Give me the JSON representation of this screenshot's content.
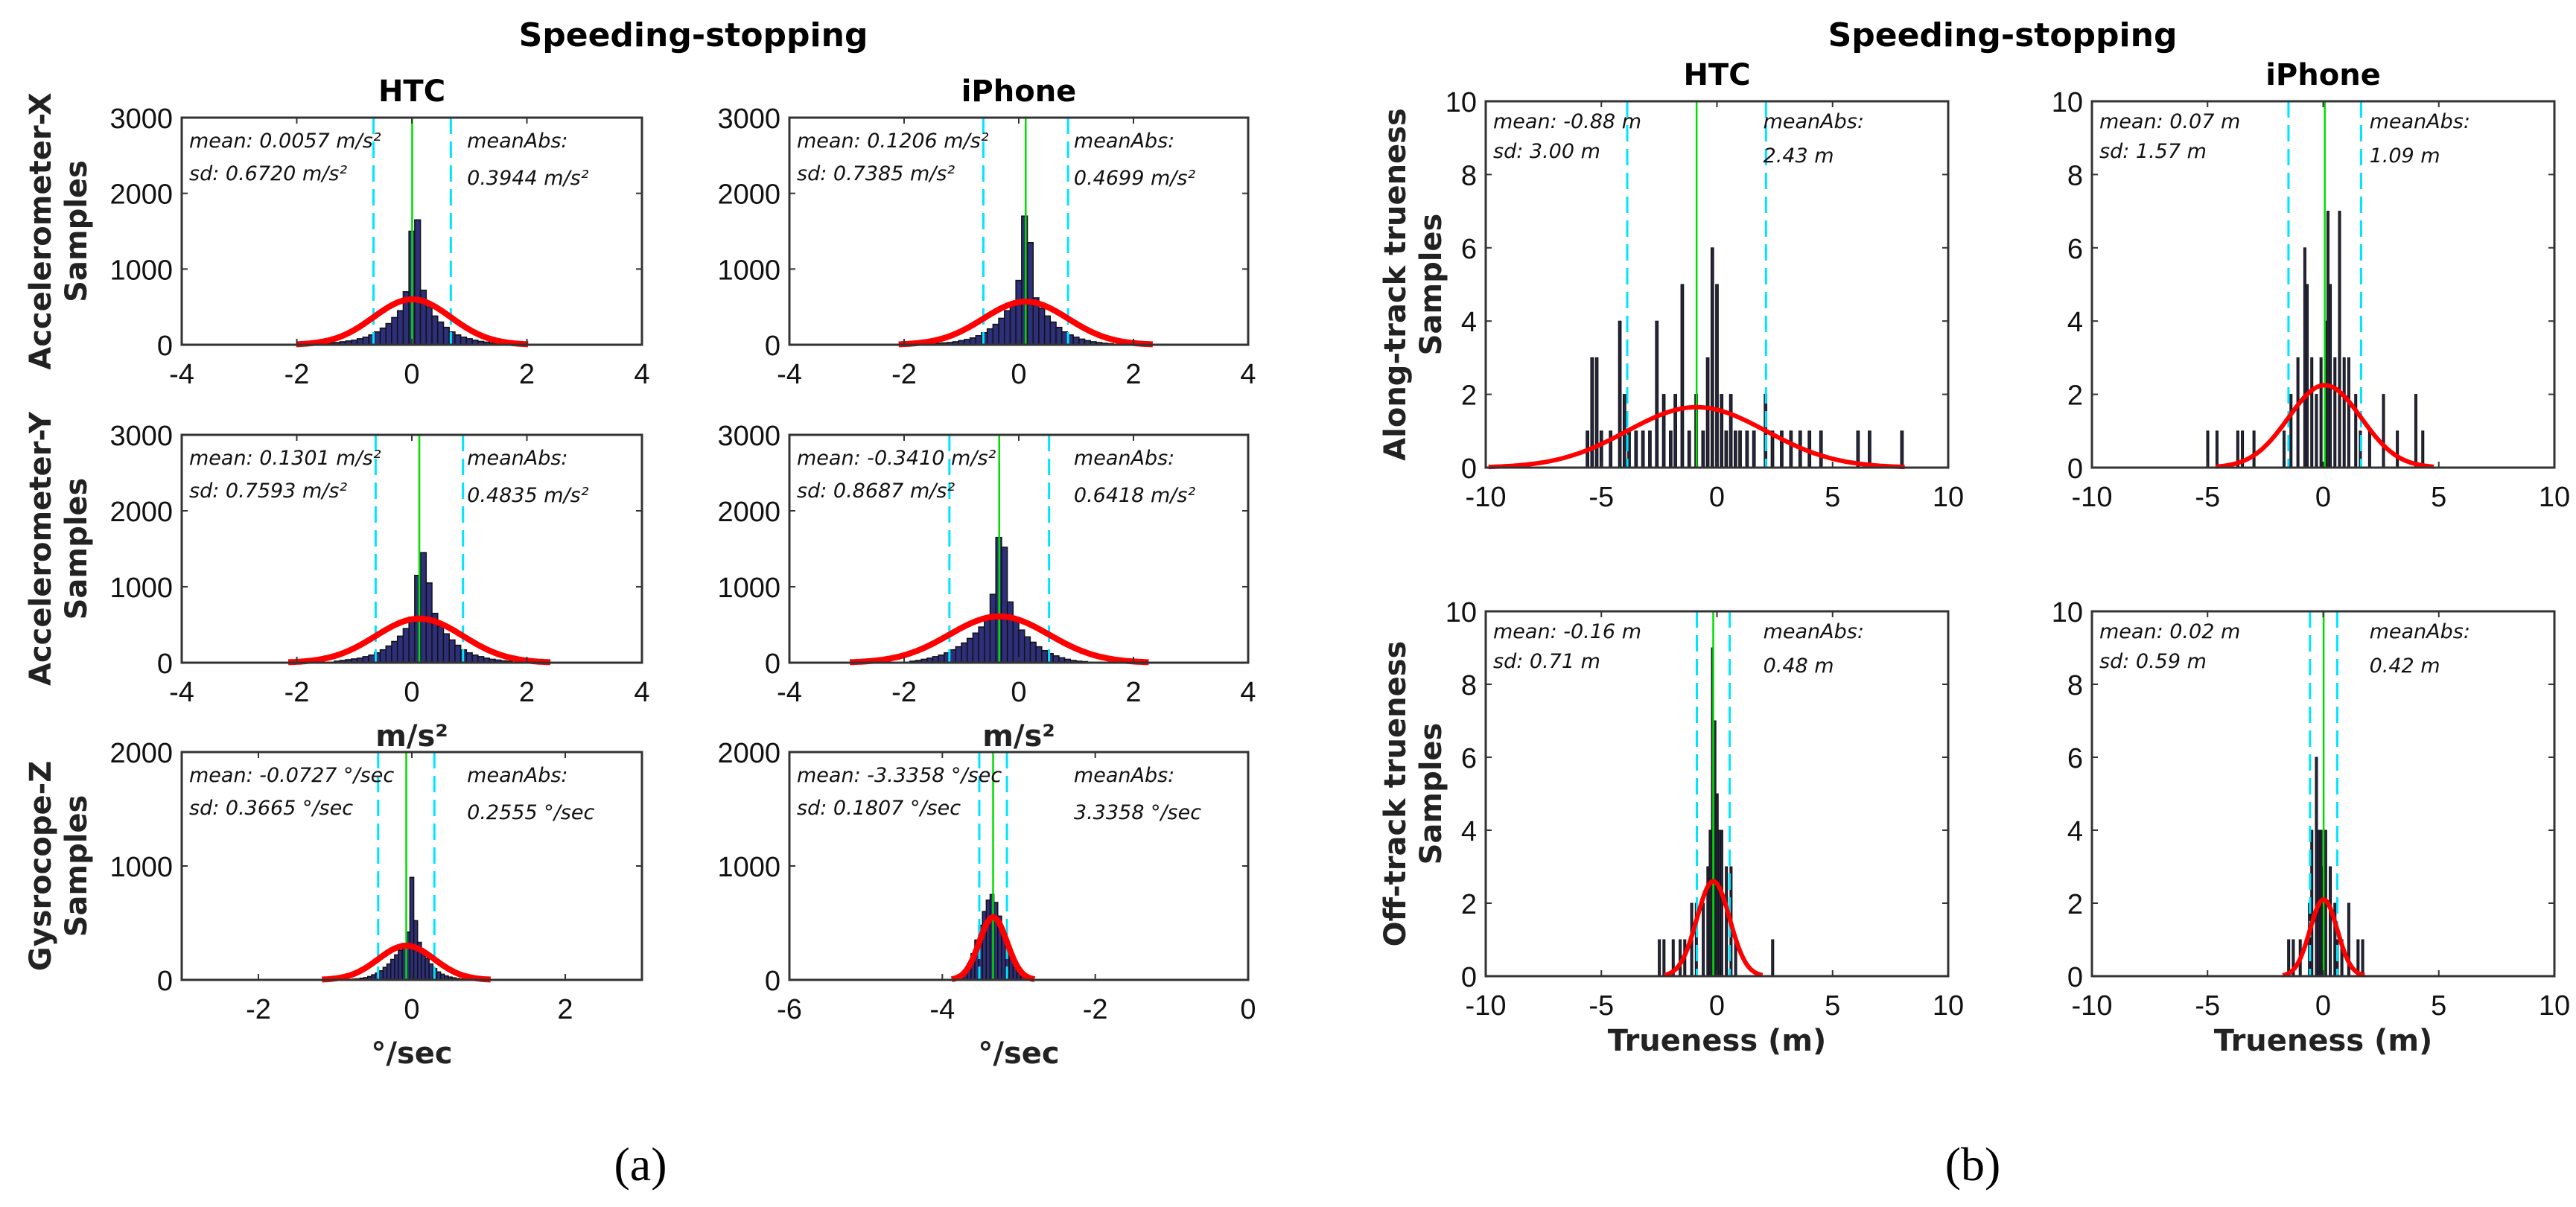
{
  "figure": {
    "panel_a_title": "Speeding-stopping",
    "panel_b_title": "Speeding-stopping",
    "panel_a_caption": "(a)",
    "panel_b_caption": "(b)",
    "colors": {
      "hist_a": "#2e2f7a",
      "hist_b": "#25263e",
      "fit": "#ff0000",
      "mean_line": "#00dd00",
      "sd_lines": "#00e5ff"
    }
  },
  "chart_data": [
    {
      "type": "bar",
      "panel": "a",
      "device": "HTC",
      "column_title": "HTC",
      "ylabel": [
        "Accelerometer-X",
        "Samples"
      ],
      "xlabel": "",
      "xlim": [
        -4,
        4
      ],
      "ylim": [
        0,
        3000
      ],
      "xticks": [
        -4,
        -2,
        0,
        2,
        4
      ],
      "yticks": [
        0,
        1000,
        2000,
        3000
      ],
      "mean_text": "mean: 0.0057 m/s²",
      "sd_text": "sd: 0.6720 m/s²",
      "meanabs_label": "meanAbs:",
      "meanabs_text": "0.3944 m/s²",
      "mean": 0.0057,
      "sd": 0.672,
      "mean_abs": 0.3944,
      "fit_peak": 600,
      "bins": {
        "start": -1.5,
        "step": 0.1,
        "counts": [
          20,
          25,
          30,
          40,
          50,
          60,
          80,
          100,
          130,
          170,
          220,
          280,
          360,
          450,
          700,
          1500,
          1650,
          720,
          500,
          380,
          300,
          230,
          170,
          130,
          100,
          80,
          60,
          45,
          35,
          25,
          20
        ]
      }
    },
    {
      "type": "bar",
      "panel": "a",
      "device": "iPhone",
      "column_title": "iPhone",
      "ylabel": [],
      "xlabel": "",
      "xlim": [
        -4,
        4
      ],
      "ylim": [
        0,
        3000
      ],
      "xticks": [
        -4,
        -2,
        0,
        2,
        4
      ],
      "yticks": [
        0,
        1000,
        2000,
        3000
      ],
      "mean_text": "mean: 0.1206 m/s²",
      "sd_text": "sd: 0.7385 m/s²",
      "meanabs_label": "meanAbs:",
      "meanabs_text": "0.4699 m/s²",
      "mean": 0.1206,
      "sd": 0.7385,
      "mean_abs": 0.4699,
      "fit_peak": 570,
      "bins": {
        "start": -1.4,
        "step": 0.1,
        "counts": [
          20,
          25,
          30,
          40,
          55,
          70,
          90,
          120,
          160,
          210,
          270,
          350,
          450,
          560,
          850,
          1700,
          1350,
          620,
          480,
          380,
          300,
          230,
          170,
          130,
          100,
          75,
          55,
          40,
          30,
          20,
          15
        ]
      }
    },
    {
      "type": "bar",
      "panel": "a",
      "device": "HTC",
      "ylabel": [
        "Accelerometer-Y",
        "Samples"
      ],
      "xlabel": "m/s²",
      "xlim": [
        -4,
        4
      ],
      "ylim": [
        0,
        3000
      ],
      "xticks": [
        -4,
        -2,
        0,
        2,
        4
      ],
      "yticks": [
        0,
        1000,
        2000,
        3000
      ],
      "mean_text": "mean: 0.1301 m/s²",
      "sd_text": "sd: 0.7593 m/s²",
      "meanabs_label": "meanAbs:",
      "meanabs_text": "0.4835 m/s²",
      "mean": 0.1301,
      "sd": 0.7593,
      "mean_abs": 0.4835,
      "fit_peak": 580,
      "bins": {
        "start": -1.3,
        "step": 0.1,
        "counts": [
          20,
          30,
          40,
          50,
          60,
          80,
          100,
          130,
          170,
          220,
          280,
          350,
          450,
          600,
          1150,
          1450,
          1050,
          650,
          480,
          380,
          300,
          230,
          170,
          130,
          100,
          80,
          60,
          45,
          35,
          25,
          20
        ]
      }
    },
    {
      "type": "bar",
      "panel": "a",
      "device": "iPhone",
      "ylabel": [],
      "xlabel": "m/s²",
      "xlim": [
        -4,
        4
      ],
      "ylim": [
        0,
        3000
      ],
      "xticks": [
        -4,
        -2,
        0,
        2,
        4
      ],
      "yticks": [
        0,
        1000,
        2000,
        3000
      ],
      "mean_text": "mean: -0.3410 m/s²",
      "sd_text": "sd: 0.8687 m/s²",
      "meanabs_label": "meanAbs:",
      "meanabs_text": "0.6418 m/s²",
      "mean": -0.341,
      "sd": 0.8687,
      "mean_abs": 0.6418,
      "fit_peak": 610,
      "bins": {
        "start": -1.85,
        "step": 0.1,
        "counts": [
          20,
          30,
          45,
          60,
          80,
          100,
          130,
          170,
          210,
          260,
          320,
          390,
          470,
          560,
          900,
          1650,
          1520,
          800,
          560,
          430,
          340,
          270,
          210,
          160,
          120,
          90,
          65,
          45,
          30,
          20,
          15
        ]
      }
    },
    {
      "type": "bar",
      "panel": "a",
      "device": "HTC",
      "ylabel": [
        "Gysrocope-Z",
        "Samples"
      ],
      "xlabel": "°/sec",
      "xlim": [
        -3,
        3
      ],
      "ylim": [
        0,
        2000
      ],
      "xticks": [
        -2,
        0,
        2
      ],
      "yticks": [
        0,
        1000,
        2000
      ],
      "mean_text": "mean: -0.0727 °/sec",
      "sd_text": "sd: 0.3665 °/sec",
      "meanabs_label": "meanAbs:",
      "meanabs_text": "0.2555 °/sec",
      "mean": -0.0727,
      "sd": 0.3665,
      "mean_abs": 0.2555,
      "fit_peak": 300,
      "bins": {
        "start": -0.8,
        "step": 0.05,
        "counts": [
          5,
          8,
          10,
          15,
          20,
          30,
          45,
          60,
          80,
          110,
          140,
          180,
          220,
          260,
          320,
          420,
          900,
          520,
          330,
          250,
          190,
          140,
          100,
          70,
          50,
          35,
          25,
          18,
          12,
          8,
          6,
          4,
          3
        ]
      }
    },
    {
      "type": "bar",
      "panel": "a",
      "device": "iPhone",
      "ylabel": [],
      "xlabel": "°/sec",
      "xlim": [
        -6,
        0
      ],
      "ylim": [
        0,
        2000
      ],
      "xticks": [
        -6,
        -4,
        -2,
        0
      ],
      "yticks": [
        0,
        1000,
        2000
      ],
      "mean_text": "mean: -3.3358 °/sec",
      "sd_text": "sd: 0.1807 °/sec",
      "meanabs_label": "meanAbs:",
      "meanabs_text": "3.3358 °/sec",
      "mean": -3.3358,
      "sd": 0.1807,
      "mean_abs": 3.3358,
      "fit_peak": 550,
      "bins": {
        "start": -3.95,
        "step": 0.05,
        "counts": [
          3,
          5,
          10,
          20,
          40,
          80,
          140,
          230,
          350,
          480,
          600,
          700,
          750,
          680,
          560,
          420,
          300,
          190,
          110,
          60,
          30,
          15,
          8,
          4,
          2
        ]
      }
    },
    {
      "type": "bar",
      "panel": "b",
      "device": "HTC",
      "column_title": "HTC",
      "ylabel": [
        "Along-track trueness",
        "Samples"
      ],
      "xlabel": "",
      "xlim": [
        -10,
        10
      ],
      "ylim": [
        0,
        10
      ],
      "xticks": [
        -10,
        -5,
        0,
        5,
        10
      ],
      "yticks": [
        0,
        2,
        4,
        6,
        8,
        10
      ],
      "mean_text": "mean: -0.88 m",
      "sd_text": "sd: 3.00 m",
      "meanabs_label": "meanAbs:",
      "meanabs_text": "2.43 m",
      "mean": -0.88,
      "sd": 3.0,
      "mean_abs": 2.43,
      "fit_peak": 1.65,
      "bar_width": 0.12,
      "points": [
        [
          -5.6,
          1
        ],
        [
          -5.4,
          3
        ],
        [
          -5.2,
          3
        ],
        [
          -5.0,
          1
        ],
        [
          -4.6,
          1
        ],
        [
          -4.2,
          4
        ],
        [
          -4.0,
          2
        ],
        [
          -3.8,
          1
        ],
        [
          -3.5,
          1
        ],
        [
          -3.2,
          1
        ],
        [
          -2.9,
          1
        ],
        [
          -2.6,
          4
        ],
        [
          -2.3,
          2
        ],
        [
          -2.0,
          1
        ],
        [
          -1.8,
          2
        ],
        [
          -1.5,
          5
        ],
        [
          -1.2,
          1
        ],
        [
          -0.9,
          2
        ],
        [
          -0.6,
          1
        ],
        [
          -0.4,
          3
        ],
        [
          -0.2,
          6
        ],
        [
          0.0,
          5
        ],
        [
          0.2,
          2
        ],
        [
          0.4,
          1
        ],
        [
          0.6,
          2
        ],
        [
          0.8,
          1
        ],
        [
          1.0,
          1
        ],
        [
          1.3,
          1
        ],
        [
          1.6,
          1
        ],
        [
          2.1,
          2
        ],
        [
          2.4,
          1
        ],
        [
          2.8,
          1
        ],
        [
          3.2,
          1
        ],
        [
          3.6,
          1
        ],
        [
          4.0,
          1
        ],
        [
          4.5,
          1
        ],
        [
          6.1,
          1
        ],
        [
          6.6,
          1
        ],
        [
          8.0,
          1
        ]
      ]
    },
    {
      "type": "bar",
      "panel": "b",
      "device": "iPhone",
      "column_title": "iPhone",
      "ylabel": [],
      "xlabel": "",
      "xlim": [
        -10,
        10
      ],
      "ylim": [
        0,
        10
      ],
      "xticks": [
        -10,
        -5,
        0,
        5,
        10
      ],
      "yticks": [
        0,
        2,
        4,
        6,
        8,
        10
      ],
      "mean_text": "mean: 0.07 m",
      "sd_text": "sd: 1.57 m",
      "meanabs_label": "meanAbs:",
      "meanabs_text": "1.09 m",
      "mean": 0.07,
      "sd": 1.57,
      "mean_abs": 1.09,
      "fit_peak": 2.25,
      "bar_width": 0.08,
      "points": [
        [
          -5.0,
          1
        ],
        [
          -4.6,
          1
        ],
        [
          -3.7,
          1
        ],
        [
          -3.5,
          1
        ],
        [
          -3.0,
          1
        ],
        [
          -1.7,
          1
        ],
        [
          -1.4,
          2
        ],
        [
          -1.1,
          3
        ],
        [
          -0.8,
          6
        ],
        [
          -0.7,
          5
        ],
        [
          -0.5,
          3
        ],
        [
          -0.3,
          2
        ],
        [
          -0.1,
          3
        ],
        [
          0.1,
          4
        ],
        [
          0.2,
          7
        ],
        [
          0.3,
          5
        ],
        [
          0.5,
          3
        ],
        [
          0.7,
          7
        ],
        [
          0.9,
          3
        ],
        [
          1.1,
          3
        ],
        [
          1.4,
          2
        ],
        [
          1.6,
          1
        ],
        [
          2.0,
          1
        ],
        [
          2.6,
          2
        ],
        [
          3.2,
          1
        ],
        [
          4.0,
          2
        ],
        [
          4.3,
          1
        ]
      ]
    },
    {
      "type": "bar",
      "panel": "b",
      "device": "HTC",
      "ylabel": [
        "Off-track trueness",
        "Samples"
      ],
      "xlabel": "Trueness (m)",
      "xlim": [
        -10,
        10
      ],
      "ylim": [
        0,
        10
      ],
      "xticks": [
        -10,
        -5,
        0,
        5,
        10
      ],
      "yticks": [
        0,
        2,
        4,
        6,
        8,
        10
      ],
      "mean_text": "mean: -0.16 m",
      "sd_text": "sd: 0.71 m",
      "meanabs_label": "meanAbs:",
      "meanabs_text": "0.48 m",
      "mean": -0.16,
      "sd": 0.71,
      "mean_abs": 0.48,
      "fit_peak": 2.6,
      "bar_width": 0.08,
      "points": [
        [
          -2.5,
          1
        ],
        [
          -2.3,
          1
        ],
        [
          -1.9,
          1
        ],
        [
          -1.6,
          1
        ],
        [
          -1.4,
          1
        ],
        [
          -1.1,
          2
        ],
        [
          -0.9,
          2
        ],
        [
          -0.6,
          2
        ],
        [
          -0.4,
          3
        ],
        [
          -0.3,
          4
        ],
        [
          -0.2,
          9
        ],
        [
          -0.1,
          7
        ],
        [
          0.0,
          5
        ],
        [
          0.1,
          4
        ],
        [
          0.2,
          4
        ],
        [
          0.4,
          3
        ],
        [
          0.6,
          3
        ],
        [
          0.8,
          1
        ],
        [
          2.4,
          1
        ]
      ]
    },
    {
      "type": "bar",
      "panel": "b",
      "device": "iPhone",
      "ylabel": [],
      "xlabel": "Trueness (m)",
      "xlim": [
        -10,
        10
      ],
      "ylim": [
        0,
        10
      ],
      "xticks": [
        -10,
        -5,
        0,
        5,
        10
      ],
      "yticks": [
        0,
        2,
        4,
        6,
        8,
        10
      ],
      "mean_text": "mean: 0.02 m",
      "sd_text": "sd: 0.59 m",
      "meanabs_label": "meanAbs:",
      "meanabs_text": "0.42 m",
      "mean": 0.02,
      "sd": 0.59,
      "mean_abs": 0.42,
      "fit_peak": 2.1,
      "bar_width": 0.08,
      "points": [
        [
          -1.5,
          1
        ],
        [
          -1.3,
          1
        ],
        [
          -1.0,
          1
        ],
        [
          -0.6,
          2
        ],
        [
          -0.5,
          4
        ],
        [
          -0.3,
          6
        ],
        [
          -0.2,
          4
        ],
        [
          -0.1,
          4
        ],
        [
          0.0,
          3
        ],
        [
          0.1,
          4
        ],
        [
          0.3,
          3
        ],
        [
          0.5,
          2
        ],
        [
          0.6,
          1
        ],
        [
          0.8,
          1
        ],
        [
          1.1,
          2
        ],
        [
          1.5,
          1
        ],
        [
          1.7,
          1
        ]
      ]
    }
  ]
}
